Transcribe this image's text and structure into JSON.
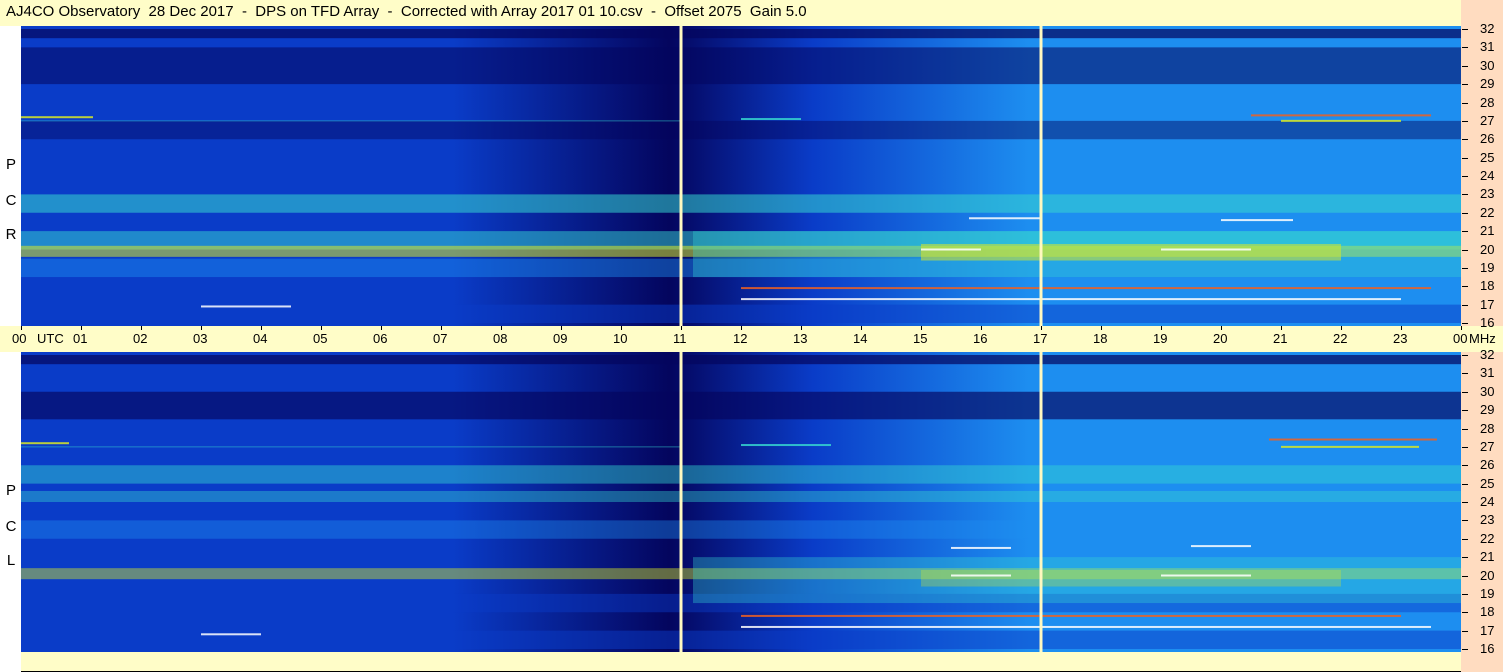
{
  "window": {
    "title": "AJ4CO Observatory  28 Dec 2017  -  DPS on TFD Array  -  Corrected with Array 2017 01 10.csv  -  Offset 2075  Gain 5.0"
  },
  "chart_data": {
    "type": "heatmap",
    "title": "AJ4CO Observatory  28 Dec 2017  -  DPS on TFD Array  -  Corrected with Array 2017 01 10.csv  -  Offset 2075  Gain 5.0",
    "x_unit_label": "UTC",
    "y_unit_label": "MHz",
    "x_ticks": [
      "00",
      "01",
      "02",
      "03",
      "04",
      "05",
      "06",
      "07",
      "08",
      "09",
      "10",
      "11",
      "12",
      "13",
      "14",
      "15",
      "16",
      "17",
      "18",
      "19",
      "20",
      "21",
      "22",
      "23",
      "00"
    ],
    "xlim_hours": [
      0,
      24
    ],
    "y_ticks": [
      "32",
      "31",
      "30",
      "29",
      "28",
      "27",
      "26",
      "25",
      "24",
      "23",
      "22",
      "21",
      "20",
      "19",
      "18",
      "17",
      "16"
    ],
    "ylim_mhz": [
      16,
      32
    ],
    "panels": [
      {
        "name": "RCP",
        "letters": [
          "P",
          "C",
          "R"
        ]
      },
      {
        "name": "LCP",
        "letters": [
          "P",
          "C",
          "L"
        ]
      }
    ],
    "markers_hours": [
      11,
      17
    ],
    "colors": {
      "dark": "#04055e",
      "low": "#0a3cc8",
      "mid": "#1d8ef0",
      "high": "#36d6d0",
      "peak": "#d8e826",
      "hot": "#f06020",
      "marker": "#fff8c0"
    }
  }
}
